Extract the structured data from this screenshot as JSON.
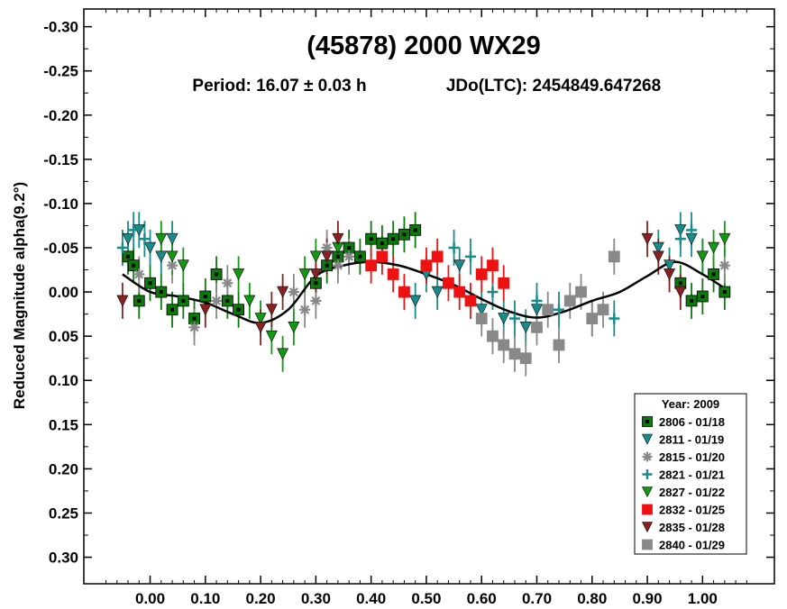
{
  "chart_data": {
    "type": "scatter",
    "title": "(45878) 2000 WX29",
    "subtitle_period": "Period: 16.07 ± 0.03 h",
    "subtitle_epoch": "JDo(LTC): 2454849.647268",
    "ylabel": "Reduced Magnitude alpha(9.2°)",
    "xlabel": "",
    "xlim": [
      -0.12,
      1.13
    ],
    "ylim": [
      -0.32,
      0.33
    ],
    "y_inverted": true,
    "x_ticks": [
      "0.00",
      "0.10",
      "0.20",
      "0.30",
      "0.40",
      "0.50",
      "0.60",
      "0.70",
      "0.80",
      "0.90",
      "1.00"
    ],
    "x_tick_values": [
      0,
      0.1,
      0.2,
      0.3,
      0.4,
      0.5,
      0.6,
      0.7,
      0.8,
      0.9,
      1.0
    ],
    "y_ticks": [
      "-0.30",
      "-0.25",
      "-0.20",
      "-0.15",
      "-0.10",
      "-0.05",
      "0.00",
      "0.05",
      "0.10",
      "0.15",
      "0.20",
      "0.25",
      "0.30"
    ],
    "y_tick_values": [
      -0.3,
      -0.25,
      -0.2,
      -0.15,
      -0.1,
      -0.05,
      0,
      0.05,
      0.1,
      0.15,
      0.2,
      0.25,
      0.3
    ],
    "grid": false,
    "legend": {
      "placement": "bottom-right",
      "title": "Year: 2009",
      "entries": [
        "2806 - 01/18",
        "2811 - 01/19",
        "2815 - 01/20",
        "2821 - 01/21",
        "2827 - 01/22",
        "2832 - 01/25",
        "2835 - 01/28",
        "2840 - 01/29"
      ]
    },
    "fit_curve": {
      "x": [
        -0.05,
        0.0,
        0.05,
        0.1,
        0.15,
        0.2,
        0.25,
        0.3,
        0.35,
        0.4,
        0.45,
        0.5,
        0.55,
        0.6,
        0.65,
        0.7,
        0.75,
        0.8,
        0.85,
        0.9,
        0.95,
        1.0,
        1.05
      ],
      "y": [
        -0.02,
        0.0,
        0.005,
        0.012,
        0.025,
        0.035,
        0.02,
        -0.018,
        -0.03,
        -0.034,
        -0.03,
        -0.02,
        -0.008,
        0.008,
        0.022,
        0.029,
        0.022,
        0.01,
        0.0,
        -0.018,
        -0.034,
        -0.02,
        0.0
      ]
    },
    "series": [
      {
        "name": "2806 - 01/18",
        "marker": "square-dot",
        "color": "#0a7a0a",
        "x": [
          -0.04,
          -0.03,
          -0.02,
          0.0,
          0.02,
          0.04,
          0.06,
          0.08,
          0.1,
          0.12,
          0.14,
          0.16,
          0.3,
          0.32,
          0.34,
          0.36,
          0.38,
          0.4,
          0.42,
          0.44,
          0.46,
          0.48,
          0.96,
          0.98,
          1.0,
          1.02,
          1.04
        ],
        "y": [
          -0.04,
          -0.03,
          0.01,
          -0.01,
          0.0,
          0.02,
          0.01,
          0.03,
          0.005,
          -0.02,
          0.01,
          0.02,
          -0.01,
          -0.03,
          -0.04,
          -0.05,
          -0.04,
          -0.06,
          -0.055,
          -0.06,
          -0.065,
          -0.07,
          -0.01,
          0.01,
          0.005,
          -0.02,
          0.0
        ]
      },
      {
        "name": "2811 - 01/19",
        "marker": "triangle-down",
        "color": "#1a8a8a",
        "x": [
          -0.04,
          -0.02,
          0.0,
          0.02,
          0.04,
          0.48,
          0.5,
          0.52,
          0.56,
          0.6,
          0.64,
          0.68,
          0.7,
          0.92,
          0.94,
          0.96,
          0.98,
          1.0
        ],
        "y": [
          -0.06,
          -0.07,
          -0.05,
          -0.04,
          -0.06,
          0.01,
          -0.02,
          0.0,
          -0.03,
          0.02,
          0.03,
          0.04,
          0.02,
          -0.05,
          -0.03,
          -0.07,
          -0.06,
          -0.04
        ]
      },
      {
        "name": "2815 - 01/20",
        "marker": "asterisk",
        "color": "#888888",
        "x": [
          -0.02,
          0.04,
          0.08,
          0.12,
          0.14,
          0.26,
          0.28,
          0.3,
          0.32,
          0.34,
          0.36,
          1.04
        ],
        "y": [
          -0.02,
          -0.03,
          0.04,
          0.01,
          -0.01,
          0.0,
          0.02,
          0.01,
          -0.05,
          -0.03,
          -0.04,
          -0.03
        ]
      },
      {
        "name": "2821 - 01/21",
        "marker": "plus",
        "color": "#1a8a8a",
        "x": [
          -0.05,
          -0.03,
          -0.01,
          0.55,
          0.58,
          0.62,
          0.66,
          0.7,
          0.74,
          0.8,
          0.84,
          0.96,
          0.98
        ],
        "y": [
          -0.05,
          -0.07,
          -0.06,
          -0.05,
          -0.04,
          0.0,
          0.03,
          0.01,
          0.02,
          0.03,
          0.03,
          -0.06,
          -0.07
        ]
      },
      {
        "name": "2827 - 01/22",
        "marker": "triangle-down",
        "color": "#119911",
        "x": [
          0.02,
          0.04,
          0.06,
          0.16,
          0.18,
          0.2,
          0.22,
          0.24,
          0.26,
          0.28,
          0.3,
          0.34,
          1.0,
          1.02,
          1.04
        ],
        "y": [
          -0.06,
          -0.04,
          -0.03,
          -0.02,
          0.01,
          0.03,
          0.05,
          0.07,
          0.04,
          -0.02,
          -0.04,
          -0.05,
          -0.04,
          -0.05,
          -0.06
        ]
      },
      {
        "name": "2832 - 01/25",
        "marker": "square",
        "color": "#ee1111",
        "x": [
          0.4,
          0.42,
          0.44,
          0.46,
          0.5,
          0.52,
          0.54,
          0.56,
          0.58,
          0.6,
          0.62,
          0.64
        ],
        "y": [
          -0.03,
          -0.04,
          -0.02,
          0.0,
          -0.03,
          -0.04,
          -0.01,
          0.0,
          0.01,
          -0.02,
          -0.03,
          -0.01
        ]
      },
      {
        "name": "2835 - 01/28",
        "marker": "triangle-down",
        "color": "#882222",
        "x": [
          -0.05,
          0.1,
          0.2,
          0.22,
          0.24,
          0.3,
          0.32,
          0.34,
          0.9,
          0.92,
          0.94,
          0.96
        ],
        "y": [
          0.01,
          0.02,
          0.04,
          0.02,
          0.0,
          -0.02,
          -0.04,
          -0.06,
          -0.06,
          -0.04,
          -0.02,
          0.0
        ]
      },
      {
        "name": "2840 - 01/29",
        "marker": "square",
        "color": "#888888",
        "x": [
          0.6,
          0.62,
          0.64,
          0.66,
          0.68,
          0.7,
          0.72,
          0.74,
          0.76,
          0.78,
          0.8,
          0.82,
          0.84
        ],
        "y": [
          0.03,
          0.05,
          0.06,
          0.07,
          0.075,
          0.04,
          0.02,
          0.06,
          0.01,
          0.0,
          0.03,
          0.02,
          -0.04
        ]
      }
    ]
  }
}
